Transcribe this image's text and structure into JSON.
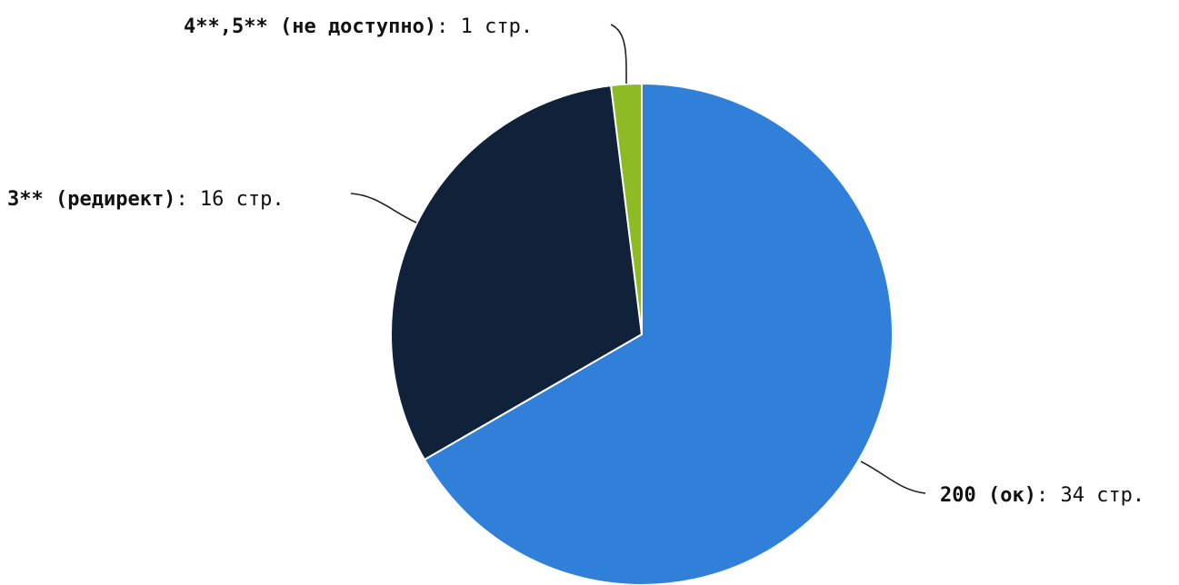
{
  "chart_data": {
    "type": "pie",
    "title": "",
    "start_angle_deg": 0,
    "direction": "clockwise",
    "slices": [
      {
        "name": "200 (ок)",
        "suffix": ": 34 стр.",
        "value": 34,
        "color": "#3080d9"
      },
      {
        "name": "3** (редирект)",
        "suffix": ": 16 стр.",
        "value": 16,
        "color": "#10223a"
      },
      {
        "name": "4**,5** (не доступно)",
        "suffix": ": 1 стр.",
        "value": 1,
        "color": "#8cbb24"
      }
    ]
  }
}
